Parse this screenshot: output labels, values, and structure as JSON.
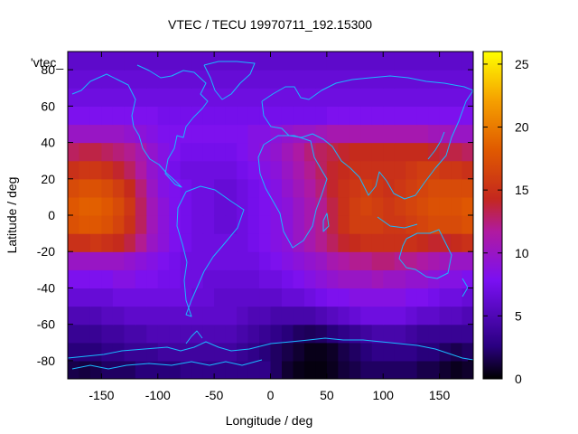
{
  "chart_data": {
    "type": "heatmap",
    "title": "VTEC / TECU 19970711_192.15300",
    "xlabel": "Longitude / deg",
    "ylabel": "Latitude / deg",
    "key_label": "'vtec_",
    "xlim": [
      -180,
      180
    ],
    "ylim": [
      -90,
      90
    ],
    "xticks": [
      -150,
      -100,
      -50,
      0,
      50,
      100,
      150
    ],
    "yticks": [
      -80,
      -60,
      -40,
      -20,
      0,
      20,
      40,
      60,
      80
    ],
    "colorbar": {
      "min": 0,
      "max": 26,
      "ticks": [
        0,
        5,
        10,
        15,
        20,
        25
      ]
    },
    "palette": "black-blue-purple-red-orange-yellow",
    "overlay": "coastlines",
    "lat_bands": [
      -85,
      -75,
      -65,
      -55,
      -45,
      -35,
      -25,
      -15,
      -5,
      5,
      15,
      25,
      35,
      45,
      55,
      65,
      75,
      85
    ],
    "lon_bands": [
      -175,
      -165,
      -155,
      -145,
      -135,
      -125,
      -115,
      -105,
      -95,
      -85,
      -75,
      -65,
      -55,
      -45,
      -35,
      -25,
      -15,
      -5,
      5,
      15,
      25,
      35,
      45,
      55,
      65,
      75,
      85,
      95,
      105,
      115,
      125,
      135,
      145,
      155,
      165,
      175
    ],
    "values": [
      [
        1.5,
        1.3,
        1.5,
        2,
        2,
        2,
        2.5,
        2.5,
        2.5,
        2.5,
        3,
        3,
        3,
        3,
        3,
        3,
        3,
        3,
        2,
        1,
        0.5,
        0.3,
        0.3,
        0.6,
        1.2,
        1.5,
        2,
        2,
        2,
        2,
        2,
        1.5,
        1.5,
        1,
        0.6,
        0.9
      ],
      [
        2.5,
        2.5,
        2.5,
        3,
        3,
        3.5,
        3.5,
        3.5,
        4,
        4,
        4,
        4,
        4,
        4,
        4,
        3.5,
        3,
        2.5,
        2,
        1.5,
        1,
        0.5,
        0.5,
        0.8,
        1.5,
        2,
        2.5,
        3,
        3,
        3,
        3,
        2.5,
        2.5,
        2,
        1.6,
        2
      ],
      [
        3.5,
        3.5,
        3.5,
        4,
        4,
        4.5,
        4.5,
        5,
        5,
        5,
        5,
        5,
        5,
        5,
        5,
        4.5,
        4,
        3.5,
        3,
        2.5,
        2,
        1.8,
        2,
        2.5,
        3,
        3.5,
        4,
        4.5,
        4.5,
        4.5,
        4,
        3.5,
        3.5,
        3.5,
        3.5,
        3.5
      ],
      [
        5,
        5,
        5,
        5.5,
        5.5,
        6,
        6,
        6,
        6,
        6,
        6,
        6,
        6,
        6,
        6,
        5.5,
        5,
        5,
        4.5,
        4.5,
        4.5,
        4.5,
        5,
        5.5,
        6,
        6.5,
        7,
        7,
        7,
        7,
        6.5,
        6,
        6,
        5.5,
        5.5,
        5
      ],
      [
        6.5,
        6.5,
        6.5,
        6.5,
        7,
        7,
        7,
        7,
        7,
        7,
        7,
        6.5,
        6.5,
        6,
        6,
        6,
        6,
        6,
        6,
        6.5,
        6.5,
        7,
        7.5,
        8,
        8,
        8.5,
        8.5,
        8.5,
        8.5,
        8.5,
        8,
        8,
        7.5,
        7,
        7,
        6.5
      ],
      [
        8,
        8,
        8,
        8,
        8.5,
        8.5,
        8,
        8,
        7.5,
        7.5,
        7,
        7,
        6.5,
        6.5,
        6.5,
        6.5,
        6.5,
        7,
        7,
        7.5,
        8,
        8.5,
        9,
        9.5,
        10,
        10,
        10,
        10.5,
        10,
        10,
        9.5,
        9.5,
        9,
        8.5,
        8.5,
        8
      ],
      [
        10,
        10,
        10,
        10,
        10,
        9.5,
        9,
        8.5,
        8,
        7.5,
        7,
        7,
        7,
        7,
        7,
        7,
        7,
        7.5,
        8,
        8.5,
        9,
        9.5,
        10,
        11,
        11.5,
        12,
        12,
        12.5,
        12.5,
        12,
        12,
        11.5,
        11,
        10.5,
        10,
        10
      ],
      [
        15,
        15,
        15.5,
        15,
        14.5,
        13.5,
        12,
        10,
        9,
        8,
        7.5,
        7,
        7,
        7,
        7,
        7,
        7.5,
        8,
        8.5,
        9,
        10,
        11,
        12,
        13,
        14,
        14.5,
        15,
        15,
        15,
        15,
        15,
        14.5,
        14,
        14,
        14.5,
        15
      ],
      [
        17.5,
        18,
        18,
        17.5,
        16.5,
        15,
        13,
        10.5,
        9,
        8,
        7.5,
        7,
        7,
        6.5,
        6.5,
        7,
        7.5,
        8,
        8.5,
        9,
        10,
        11,
        12,
        13.5,
        15,
        16,
        16,
        16,
        15.5,
        15.5,
        16,
        16.5,
        17,
        17,
        17,
        17.5
      ],
      [
        18,
        18.5,
        18.5,
        18,
        17,
        15.5,
        13,
        10.5,
        9,
        8,
        7.5,
        7,
        7,
        6.5,
        6.5,
        7,
        7.5,
        8,
        8.5,
        9,
        10,
        11,
        12,
        13.5,
        15,
        16,
        16.5,
        16,
        15.5,
        16,
        16.5,
        17,
        17.5,
        17.5,
        17.5,
        18
      ],
      [
        17,
        17.5,
        17.5,
        17,
        16,
        14.5,
        12.5,
        10,
        8.5,
        8,
        7.5,
        7,
        7,
        6.5,
        6.5,
        7,
        7.5,
        8,
        8.5,
        9.5,
        10.5,
        11.5,
        12.5,
        14,
        15,
        15.5,
        16,
        15.5,
        15,
        15.5,
        16,
        16.5,
        17,
        17,
        17,
        17
      ],
      [
        15,
        15.5,
        15.5,
        15,
        14,
        13,
        11.5,
        9.5,
        8.5,
        7.5,
        7,
        7,
        7,
        7,
        7,
        7.5,
        8,
        8.5,
        9,
        10,
        11,
        12,
        13,
        14,
        14.5,
        15,
        15,
        15,
        15,
        15,
        15.5,
        16,
        16,
        15.5,
        15.5,
        15
      ],
      [
        13,
        13.5,
        13.5,
        13,
        12.5,
        12,
        11,
        9.5,
        8.5,
        8,
        7.5,
        7.5,
        7.5,
        7.5,
        7.5,
        8,
        8.5,
        9,
        9.5,
        10.5,
        11.5,
        12.5,
        13,
        13.5,
        14,
        14.5,
        14.5,
        14.5,
        14.5,
        14.5,
        14.5,
        14.5,
        14,
        13.5,
        13.5,
        13
      ],
      [
        10,
        10,
        10,
        10,
        10,
        9.5,
        9,
        8.5,
        8,
        8,
        8,
        8,
        8,
        8,
        8,
        8,
        8.5,
        8.5,
        9,
        9.5,
        10,
        10,
        10.5,
        11,
        11,
        11,
        11,
        11,
        11,
        11,
        11,
        11,
        10.5,
        10.5,
        10,
        10
      ],
      [
        8,
        8,
        8,
        8,
        8,
        8,
        8,
        8,
        7.5,
        7.5,
        7.5,
        7.5,
        7.5,
        7.5,
        7.5,
        7.5,
        7.5,
        7.5,
        7.5,
        7.5,
        7.5,
        7.5,
        7.5,
        8,
        8,
        8,
        8,
        8,
        8,
        8,
        8,
        8,
        8,
        8,
        8,
        8
      ],
      [
        7,
        7,
        7,
        7,
        7,
        7,
        7,
        7,
        7,
        7,
        7,
        7,
        7,
        7,
        7,
        7,
        7,
        7,
        7,
        7,
        7,
        7,
        7,
        7,
        7,
        7,
        7,
        7,
        7,
        7,
        7,
        7,
        7,
        7,
        7,
        7
      ],
      [
        6.5,
        6.5,
        6.5,
        6.5,
        6.5,
        6.5,
        6.5,
        6.5,
        6.5,
        6.5,
        6.5,
        6.5,
        6.5,
        6.5,
        6.5,
        6.5,
        6.5,
        6.5,
        6.5,
        6.5,
        6.5,
        6.5,
        6.5,
        6.5,
        6.5,
        6.5,
        6.5,
        6.5,
        6.5,
        6.5,
        6.5,
        6.5,
        6.5,
        6.5,
        6.5,
        6.5
      ],
      [
        6,
        6,
        6,
        6,
        6,
        6,
        6,
        6,
        6,
        6,
        6,
        6,
        6,
        6,
        6,
        6,
        6,
        6,
        6,
        6,
        6,
        6,
        6,
        6,
        6,
        6,
        6,
        6,
        6,
        6,
        6,
        6,
        6,
        6,
        6,
        6
      ]
    ]
  }
}
